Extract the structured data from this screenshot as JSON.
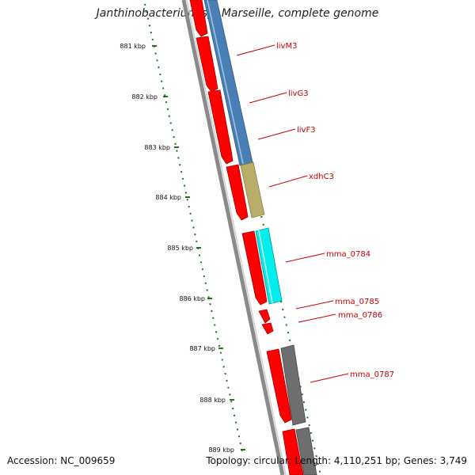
{
  "title": "Janthinobacterium sp. Marseille, complete genome",
  "footer": {
    "accession": "Accession: NC_009659",
    "topology": "Topology: circular; Length: 4,110,251 bp; Genes: 3,749"
  },
  "scale_unit": "kbp",
  "ticks": [
    "881 kbp",
    "882 kbp",
    "883 kbp",
    "884 kbp",
    "885 kbp",
    "886 kbp",
    "887 kbp",
    "888 kbp",
    "889 kbp"
  ],
  "gene_labels": [
    "livM3",
    "livG3",
    "livF3",
    "xdhC3",
    "mma_0784",
    "mma_0785",
    "mma_0786",
    "mma_0787"
  ],
  "colors": {
    "backbone": "#8a8a8a",
    "cds": "#ff0000",
    "livM3": "#4a7fb5",
    "xdhC3": "#b8ae6a",
    "mma_0784": "#00eeee",
    "mma_0787": "#6e6e6e",
    "tick": "#1a7a1a",
    "label": "#cc0000"
  }
}
